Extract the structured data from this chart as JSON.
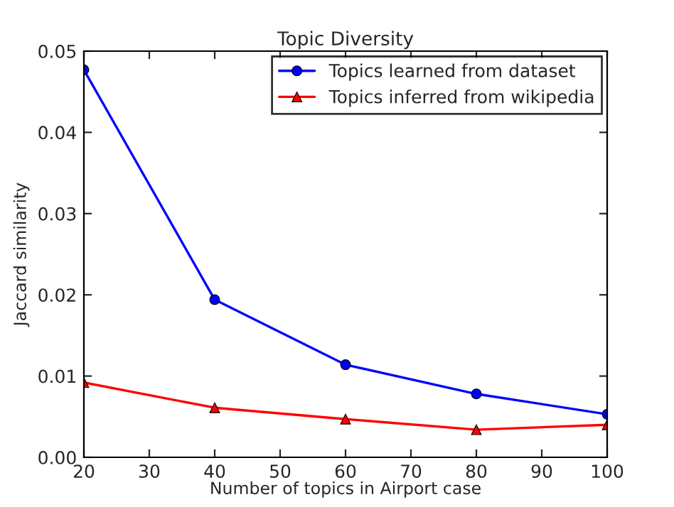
{
  "chart_data": {
    "type": "line",
    "title": "Topic Diversity",
    "xlabel": "Number of topics in Airport case",
    "ylabel": "Jaccard similarity",
    "x": [
      20,
      40,
      60,
      80,
      100
    ],
    "series": [
      {
        "name": "Topics learned from dataset",
        "color": "#0000ff",
        "marker": "circle",
        "values": [
          0.0477,
          0.0194,
          0.0114,
          0.0078,
          0.0053
        ]
      },
      {
        "name": "Topics inferred from wikipedia",
        "color": "#ff0000",
        "marker": "triangle",
        "values": [
          0.0092,
          0.0061,
          0.0047,
          0.0034,
          0.004
        ]
      }
    ],
    "xlim": [
      20,
      100
    ],
    "xticks": [
      20,
      30,
      40,
      50,
      60,
      70,
      80,
      90,
      100
    ],
    "ylim": [
      0,
      0.05
    ],
    "yticks": [
      {
        "value": 0,
        "label": "0.00"
      },
      {
        "value": 0.01,
        "label": "0.01"
      },
      {
        "value": 0.02,
        "label": "0.02"
      },
      {
        "value": 0.03,
        "label": "0.03"
      },
      {
        "value": 0.04,
        "label": "0.04"
      },
      {
        "value": 0.05,
        "label": "0.05"
      }
    ],
    "legend": "top right",
    "grid": false,
    "line_style": "solid"
  }
}
